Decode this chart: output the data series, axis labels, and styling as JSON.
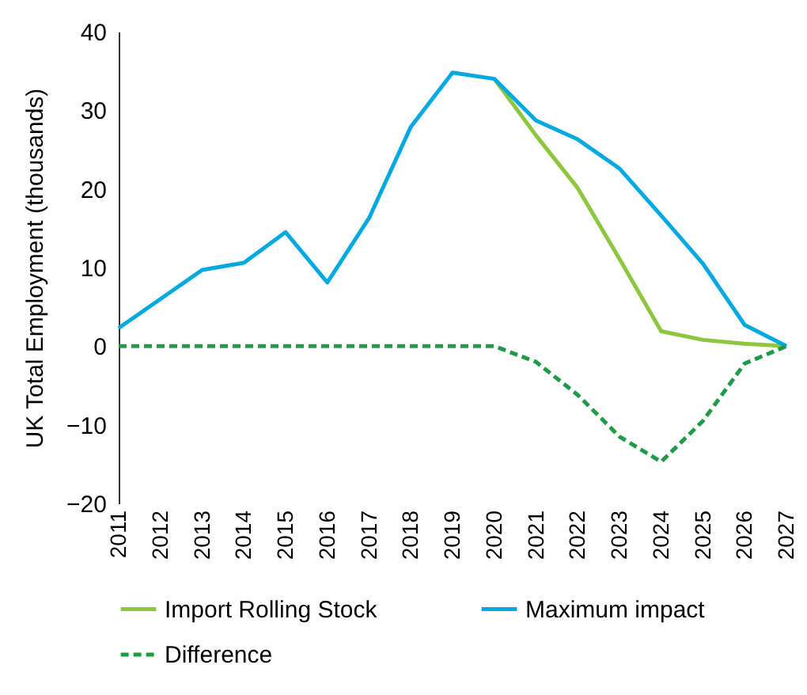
{
  "chart_data": {
    "type": "line",
    "ylabel": "UK Total Employment (thousands)",
    "categories": [
      "2011",
      "2012",
      "2013",
      "2014",
      "2015",
      "2016",
      "2017",
      "2018",
      "2019",
      "2020",
      "2021",
      "2022",
      "2023",
      "2024",
      "2025",
      "2026",
      "2027"
    ],
    "series": [
      {
        "name": "Import Rolling Stock",
        "color": "#8dc63f",
        "line_style": "solid",
        "values": [
          null,
          null,
          null,
          null,
          null,
          null,
          null,
          null,
          null,
          34.0,
          26.8,
          20.1,
          11.1,
          1.9,
          0.8,
          0.3,
          0
        ]
      },
      {
        "name": "Maximum impact",
        "color": "#00a9e0",
        "line_style": "solid",
        "values": [
          2.3,
          6.0,
          9.7,
          10.6,
          14.5,
          8.1,
          16.3,
          27.9,
          34.8,
          34.0,
          28.7,
          26.3,
          22.6,
          16.6,
          10.5,
          2.7,
          0
        ]
      },
      {
        "name": "Difference",
        "color": "#1f9a48",
        "line_style": "dashed",
        "values": [
          0,
          0,
          0,
          0,
          0,
          0,
          0,
          0,
          0,
          0,
          -2.0,
          -6.2,
          -11.5,
          -14.7,
          -9.5,
          -2.2,
          0
        ]
      }
    ],
    "ylim": [
      -20,
      40
    ],
    "yticks": [
      -20,
      -10,
      0,
      10,
      20,
      30,
      40
    ],
    "grid": false,
    "legend": "bottom",
    "marker": "none"
  }
}
